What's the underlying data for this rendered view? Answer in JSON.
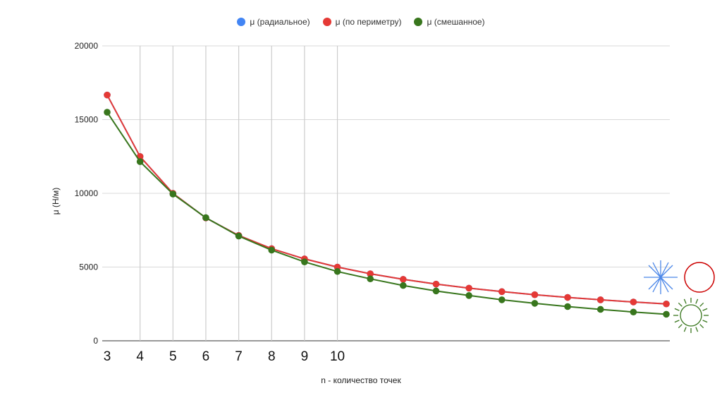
{
  "chart_data": {
    "type": "line",
    "title": "",
    "xlabel": "n - количество точек",
    "ylabel": "μ (Н/м)",
    "ylim": [
      0,
      20000
    ],
    "yticks": [
      0,
      5000,
      10000,
      15000,
      20000
    ],
    "xlim": [
      3,
      20
    ],
    "x": [
      3,
      4,
      5,
      6,
      7,
      8,
      9,
      10,
      11,
      12,
      13,
      14,
      15,
      16,
      17,
      18,
      19,
      20
    ],
    "x_tick_labels": [
      "3",
      "4",
      "5",
      "6",
      "7",
      "8",
      "9",
      "10"
    ],
    "x_gridlines": [
      4,
      5,
      6,
      7,
      8,
      9,
      10
    ],
    "legend_position": "top-center",
    "series": [
      {
        "name": "μ (радиальное)",
        "color": "#4285f4",
        "values": [
          16667,
          12500,
          10000,
          8333,
          7143,
          6250,
          5556,
          5000,
          4545,
          4167,
          3846,
          3571,
          3333,
          3125,
          2941,
          2778,
          2632,
          2500
        ]
      },
      {
        "name": "μ (по периметру)",
        "color": "#e53935",
        "values": [
          16667,
          12500,
          10000,
          8333,
          7143,
          6250,
          5556,
          5000,
          4545,
          4167,
          3846,
          3571,
          3333,
          3125,
          2941,
          2778,
          2632,
          2500
        ]
      },
      {
        "name": "μ (смешанное)",
        "color": "#38761d",
        "values": [
          15500,
          12150,
          9950,
          8350,
          7100,
          6150,
          5350,
          4700,
          4200,
          3750,
          3380,
          3070,
          2780,
          2540,
          2320,
          2130,
          1950,
          1800
        ]
      }
    ],
    "icons": [
      {
        "name": "radial-asterisk-icon",
        "color": "#4a86e8"
      },
      {
        "name": "perimeter-circle-icon",
        "color": "#cc0000"
      },
      {
        "name": "mixed-sun-icon",
        "color": "#38761d"
      }
    ]
  }
}
